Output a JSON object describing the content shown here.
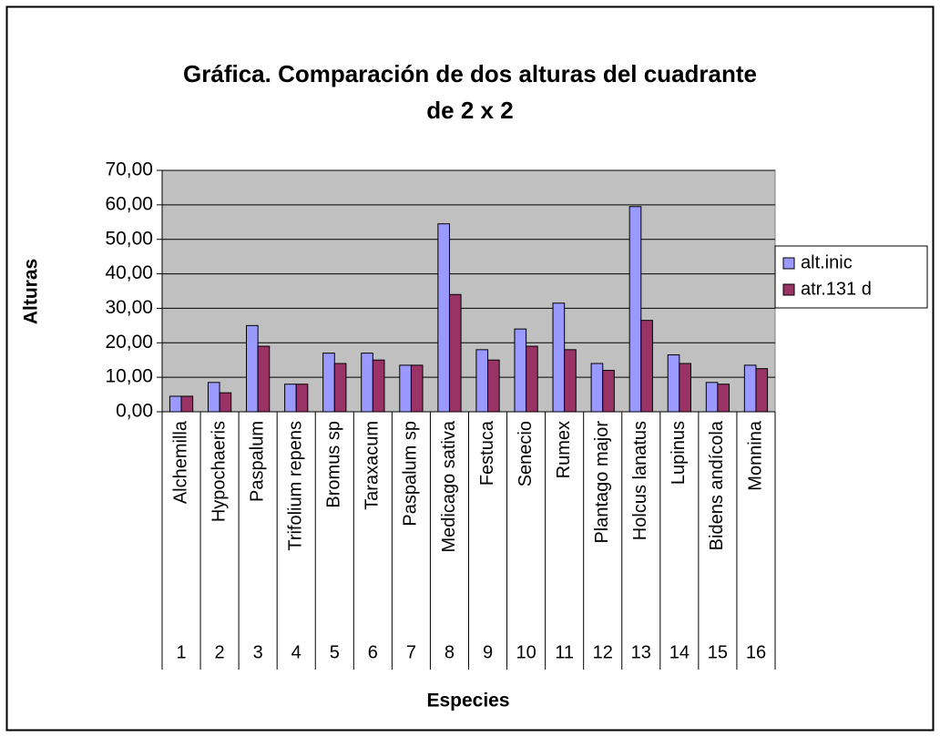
{
  "chart_data": {
    "type": "bar",
    "title": [
      "Gráfica. Comparación de dos alturas del cuadrante",
      "de 2 x 2"
    ],
    "y_label": "Alturas",
    "x_label": "Especies",
    "categories": [
      "Alchemilla",
      "Hypochaeris",
      "Paspalum",
      "Trifolium repens",
      "Bromus sp",
      "Taraxacum",
      "Paspalum sp",
      "Medicago sativa",
      "Festuca",
      "Senecio",
      "Rumex",
      "Plantago major",
      "Holcus lanatus",
      "Lupinus",
      "Bidens andícola",
      "Monnina"
    ],
    "category_groups": [
      "1",
      "2",
      "3",
      "4",
      "5",
      "6",
      "7",
      "8",
      "9",
      "10",
      "11",
      "12",
      "13",
      "14",
      "15",
      "16"
    ],
    "series": [
      {
        "name": "alt.inic",
        "color": "#9999ff",
        "values": [
          4.5,
          8.5,
          25,
          8,
          17,
          17,
          13.5,
          54.5,
          18,
          24,
          31.5,
          14,
          59.5,
          16.5,
          8.5,
          13.5
        ]
      },
      {
        "name": "atr.131 d",
        "color": "#993366",
        "values": [
          4.5,
          5.5,
          19,
          8,
          14,
          15,
          13.5,
          34,
          15,
          19,
          18,
          12,
          26.5,
          14,
          8,
          12.5
        ]
      }
    ],
    "ylim": [
      0,
      70
    ],
    "yticks": [
      {
        "value": 0,
        "label": "0,00"
      },
      {
        "value": 10,
        "label": "10,00"
      },
      {
        "value": 20,
        "label": "20,00"
      },
      {
        "value": 30,
        "label": "30,00"
      },
      {
        "value": 40,
        "label": "40,00"
      },
      {
        "value": 50,
        "label": "50,00"
      },
      {
        "value": 60,
        "label": "60,00"
      },
      {
        "value": 70,
        "label": "70,00"
      }
    ],
    "grid": true,
    "plot_background": "#c0c0c0",
    "legend": "right"
  }
}
